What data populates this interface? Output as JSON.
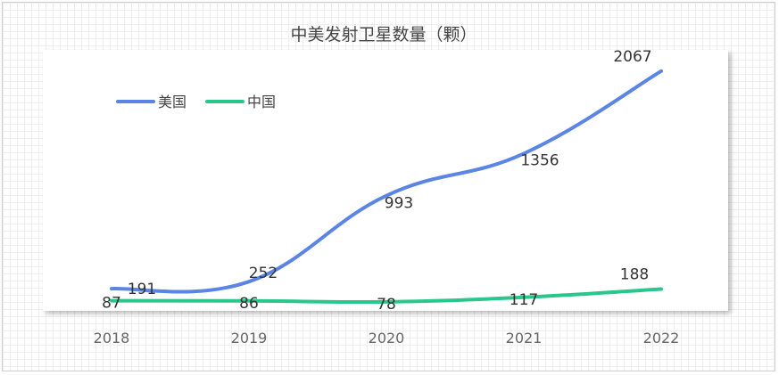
{
  "chart_data": {
    "type": "line",
    "title": "中美发射卫星数量（颗）",
    "categories": [
      "2018",
      "2019",
      "2020",
      "2021",
      "2022"
    ],
    "series": [
      {
        "name": "美国",
        "color": "#5b85e4",
        "values": [
          191,
          252,
          993,
          1356,
          2067
        ]
      },
      {
        "name": "中国",
        "color": "#2ac78d",
        "values": [
          87,
          86,
          78,
          117,
          188
        ]
      }
    ],
    "ylim": [
      0,
      2250
    ],
    "smooth": true,
    "grid": false,
    "legend": "top-left"
  }
}
